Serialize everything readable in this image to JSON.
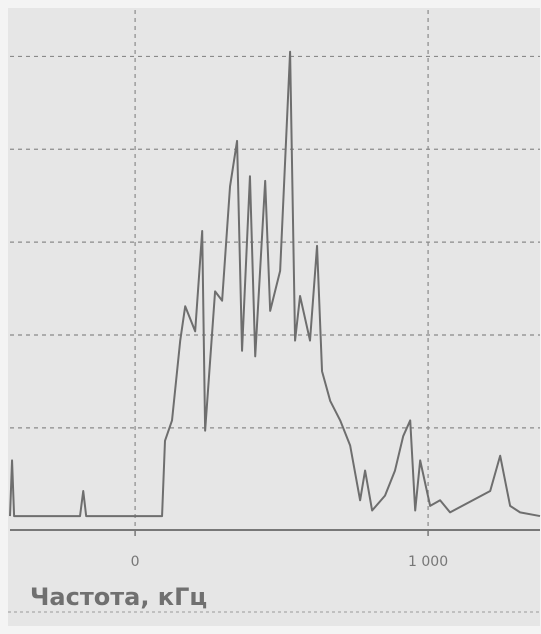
{
  "chart_data": {
    "type": "line",
    "x_label": "Частота, кГц",
    "x": [
      -427,
      -420,
      -413,
      -188,
      -177,
      -167,
      92,
      102,
      126,
      154,
      171,
      205,
      229,
      239,
      273,
      297,
      324,
      348,
      365,
      392,
      410,
      444,
      461,
      495,
      529,
      546,
      563,
      597,
      621,
      638,
      666,
      700,
      734,
      768,
      785,
      809,
      853,
      887,
      915,
      939,
      956,
      973,
      1007,
      1041,
      1075,
      1212,
      1246,
      1280,
      1314,
      1382
    ],
    "series": [
      {
        "color": "#6e6e6e",
        "values": [
          0.05,
          0.65,
          0.05,
          0.05,
          0.32,
          0.05,
          0.05,
          0.86,
          1.08,
          1.94,
          2.31,
          2.04,
          3.12,
          0.97,
          2.47,
          2.37,
          3.6,
          4.09,
          1.83,
          3.71,
          1.77,
          3.66,
          2.26,
          2.69,
          5.05,
          1.94,
          2.42,
          1.94,
          2.96,
          1.61,
          1.29,
          1.08,
          0.81,
          0.22,
          0.54,
          0.11,
          0.27,
          0.54,
          0.91,
          1.08,
          0.11,
          0.65,
          0.16,
          0.22,
          0.09,
          0.32,
          0.7,
          0.16,
          0.09,
          0.05
        ]
      }
    ],
    "xlim": [
      -427,
      1382
    ],
    "xticks": [
      0,
      {
        "value": 1000,
        "label": "1 000"
      }
    ],
    "ylim": [
      -0.1,
      5.5
    ],
    "ygrid": [
      1,
      2,
      3,
      4,
      5
    ],
    "grid": true
  }
}
